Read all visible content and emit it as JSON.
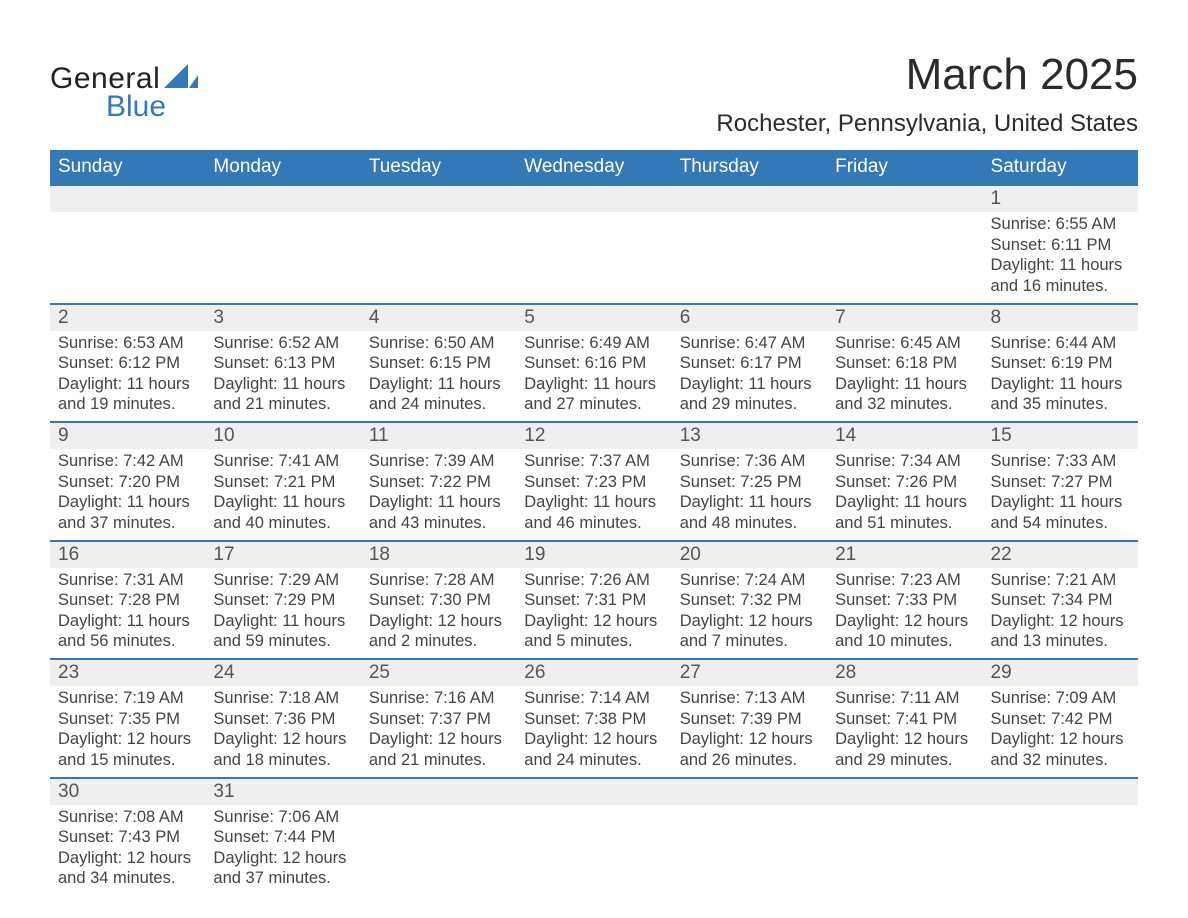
{
  "brand": {
    "name1": "General",
    "name2": "Blue",
    "accent": "#3478b8"
  },
  "title": "March 2025",
  "location": "Rochester, Pennsylvania, United States",
  "colors": {
    "header_bg": "#3478b8",
    "header_text": "#ffffff",
    "dayrow_bg": "#efefef",
    "row_border": "#3478b8",
    "body_text": "#3a3a3a",
    "page_bg": "#ffffff"
  },
  "weekdays": [
    "Sunday",
    "Monday",
    "Tuesday",
    "Wednesday",
    "Thursday",
    "Friday",
    "Saturday"
  ],
  "weeks": [
    [
      null,
      null,
      null,
      null,
      null,
      null,
      {
        "n": "1",
        "sr": "6:55 AM",
        "ss": "6:11 PM",
        "dl": "11 hours and 16 minutes."
      }
    ],
    [
      {
        "n": "2",
        "sr": "6:53 AM",
        "ss": "6:12 PM",
        "dl": "11 hours and 19 minutes."
      },
      {
        "n": "3",
        "sr": "6:52 AM",
        "ss": "6:13 PM",
        "dl": "11 hours and 21 minutes."
      },
      {
        "n": "4",
        "sr": "6:50 AM",
        "ss": "6:15 PM",
        "dl": "11 hours and 24 minutes."
      },
      {
        "n": "5",
        "sr": "6:49 AM",
        "ss": "6:16 PM",
        "dl": "11 hours and 27 minutes."
      },
      {
        "n": "6",
        "sr": "6:47 AM",
        "ss": "6:17 PM",
        "dl": "11 hours and 29 minutes."
      },
      {
        "n": "7",
        "sr": "6:45 AM",
        "ss": "6:18 PM",
        "dl": "11 hours and 32 minutes."
      },
      {
        "n": "8",
        "sr": "6:44 AM",
        "ss": "6:19 PM",
        "dl": "11 hours and 35 minutes."
      }
    ],
    [
      {
        "n": "9",
        "sr": "7:42 AM",
        "ss": "7:20 PM",
        "dl": "11 hours and 37 minutes."
      },
      {
        "n": "10",
        "sr": "7:41 AM",
        "ss": "7:21 PM",
        "dl": "11 hours and 40 minutes."
      },
      {
        "n": "11",
        "sr": "7:39 AM",
        "ss": "7:22 PM",
        "dl": "11 hours and 43 minutes."
      },
      {
        "n": "12",
        "sr": "7:37 AM",
        "ss": "7:23 PM",
        "dl": "11 hours and 46 minutes."
      },
      {
        "n": "13",
        "sr": "7:36 AM",
        "ss": "7:25 PM",
        "dl": "11 hours and 48 minutes."
      },
      {
        "n": "14",
        "sr": "7:34 AM",
        "ss": "7:26 PM",
        "dl": "11 hours and 51 minutes."
      },
      {
        "n": "15",
        "sr": "7:33 AM",
        "ss": "7:27 PM",
        "dl": "11 hours and 54 minutes."
      }
    ],
    [
      {
        "n": "16",
        "sr": "7:31 AM",
        "ss": "7:28 PM",
        "dl": "11 hours and 56 minutes."
      },
      {
        "n": "17",
        "sr": "7:29 AM",
        "ss": "7:29 PM",
        "dl": "11 hours and 59 minutes."
      },
      {
        "n": "18",
        "sr": "7:28 AM",
        "ss": "7:30 PM",
        "dl": "12 hours and 2 minutes."
      },
      {
        "n": "19",
        "sr": "7:26 AM",
        "ss": "7:31 PM",
        "dl": "12 hours and 5 minutes."
      },
      {
        "n": "20",
        "sr": "7:24 AM",
        "ss": "7:32 PM",
        "dl": "12 hours and 7 minutes."
      },
      {
        "n": "21",
        "sr": "7:23 AM",
        "ss": "7:33 PM",
        "dl": "12 hours and 10 minutes."
      },
      {
        "n": "22",
        "sr": "7:21 AM",
        "ss": "7:34 PM",
        "dl": "12 hours and 13 minutes."
      }
    ],
    [
      {
        "n": "23",
        "sr": "7:19 AM",
        "ss": "7:35 PM",
        "dl": "12 hours and 15 minutes."
      },
      {
        "n": "24",
        "sr": "7:18 AM",
        "ss": "7:36 PM",
        "dl": "12 hours and 18 minutes."
      },
      {
        "n": "25",
        "sr": "7:16 AM",
        "ss": "7:37 PM",
        "dl": "12 hours and 21 minutes."
      },
      {
        "n": "26",
        "sr": "7:14 AM",
        "ss": "7:38 PM",
        "dl": "12 hours and 24 minutes."
      },
      {
        "n": "27",
        "sr": "7:13 AM",
        "ss": "7:39 PM",
        "dl": "12 hours and 26 minutes."
      },
      {
        "n": "28",
        "sr": "7:11 AM",
        "ss": "7:41 PM",
        "dl": "12 hours and 29 minutes."
      },
      {
        "n": "29",
        "sr": "7:09 AM",
        "ss": "7:42 PM",
        "dl": "12 hours and 32 minutes."
      }
    ],
    [
      {
        "n": "30",
        "sr": "7:08 AM",
        "ss": "7:43 PM",
        "dl": "12 hours and 34 minutes."
      },
      {
        "n": "31",
        "sr": "7:06 AM",
        "ss": "7:44 PM",
        "dl": "12 hours and 37 minutes."
      },
      null,
      null,
      null,
      null,
      null
    ]
  ],
  "labels": {
    "sunrise": "Sunrise: ",
    "sunset": "Sunset: ",
    "daylight": "Daylight: "
  }
}
